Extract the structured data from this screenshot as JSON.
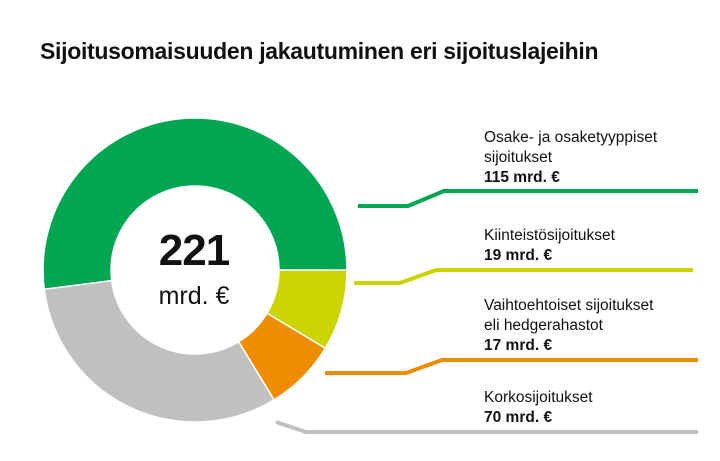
{
  "title": "Sijoitusomaisuuden jakautuminen eri sijoituslajeihin",
  "center": {
    "total": "221",
    "unit": "mrd. €"
  },
  "chart_data": {
    "type": "pie",
    "title": "Sijoitusomaisuuden jakautuminen eri sijoituslajeihin",
    "total": 221,
    "unit": "mrd. €",
    "series": [
      {
        "name": "Osake- ja osaketyyppiset sijoitukset",
        "value": 115,
        "color": "#00A651"
      },
      {
        "name": "Kiinteistösijoitukset",
        "value": 19,
        "color": "#CBD300"
      },
      {
        "name": "Vaihtoehtoiset sijoitukset eli hedgerahastot",
        "value": 17,
        "color": "#F08C00"
      },
      {
        "name": "Korkosijoitukset",
        "value": 70,
        "color": "#C0C0C0"
      }
    ]
  },
  "labels": [
    {
      "line1": "Osake- ja osaketyyppiset",
      "line2": "sijoitukset",
      "value": "115 mrd. €"
    },
    {
      "line1": "Kiinteistösijoitukset",
      "line2": "",
      "value": "19 mrd. €"
    },
    {
      "line1": "Vaihtoehtoiset sijoitukset",
      "line2": "eli hedgerahastot",
      "value": "17 mrd. €"
    },
    {
      "line1": "Korkosijoitukset",
      "line2": "",
      "value": "70 mrd. €"
    }
  ]
}
